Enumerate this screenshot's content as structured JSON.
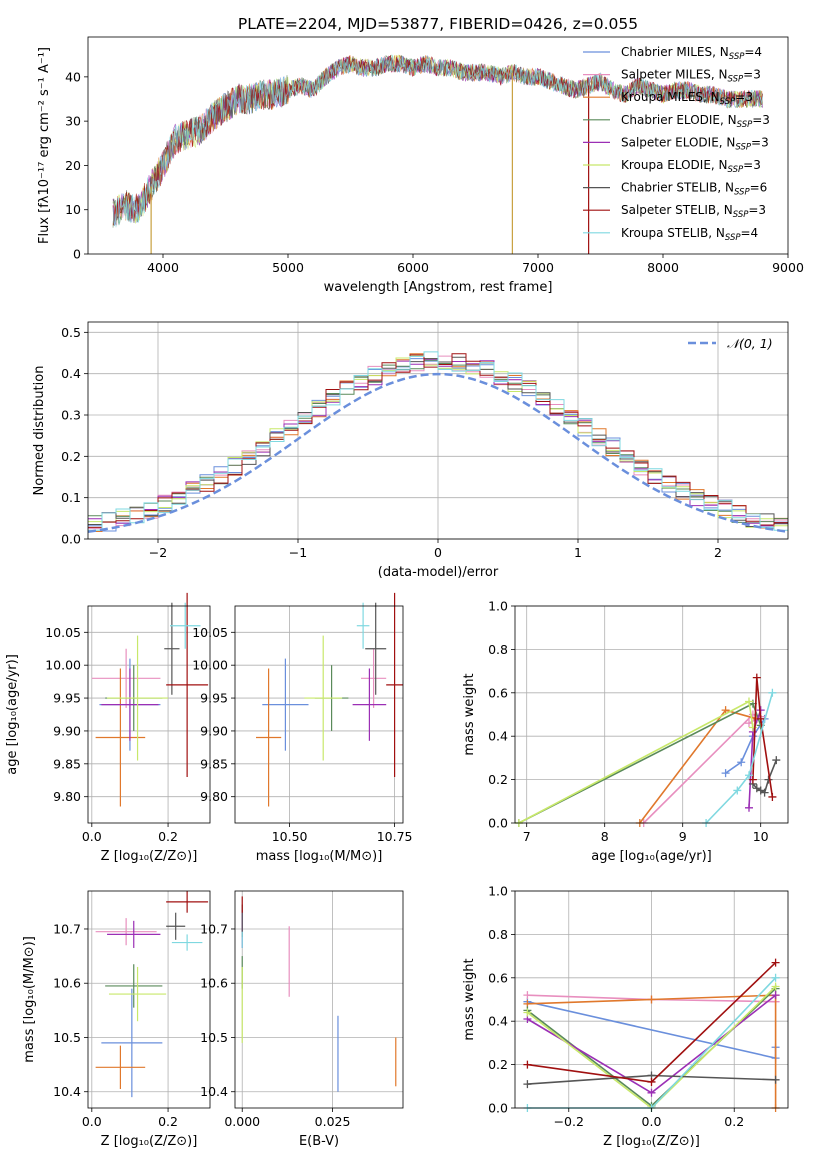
{
  "figure_title": "PLATE=2204, MJD=53877, FIBERID=0426, z=0.055",
  "colors": {
    "chabrier_miles": "#6a8fdc",
    "salpeter_miles": "#e88fbf",
    "kroupa_miles": "#e0782c",
    "chabrier_elodie": "#5a8a5a",
    "salpeter_elodie": "#9b2fb5",
    "kroupa_elodie": "#c8e86a",
    "chabrier_stelib": "#555555",
    "salpeter_stelib": "#a01010",
    "kroupa_stelib": "#7fd8e0",
    "normal": "#6a8fdc",
    "grid": "#b0b0b0"
  },
  "chart_data": [
    {
      "id": "spectrum",
      "type": "line",
      "xlabel": "wavelength [Angstrom, rest frame]",
      "ylabel": "Flux [fλ10⁻¹⁷ erg cm⁻² s⁻¹ A⁻¹]",
      "xlim": [
        3400,
        9000
      ],
      "ylim": [
        0,
        49
      ],
      "xticks": [
        "4000",
        "5000",
        "6000",
        "7000",
        "8000",
        "9000"
      ],
      "yticks": [
        "0",
        "10",
        "20",
        "30",
        "40"
      ],
      "grid": false,
      "legend_position": "right",
      "continuum": [
        [
          3600,
          9
        ],
        [
          3700,
          11
        ],
        [
          3800,
          10
        ],
        [
          3900,
          15
        ],
        [
          4000,
          20
        ],
        [
          4100,
          26
        ],
        [
          4200,
          27
        ],
        [
          4300,
          28
        ],
        [
          4400,
          31
        ],
        [
          4500,
          33
        ],
        [
          4600,
          35
        ],
        [
          4700,
          35
        ],
        [
          4800,
          36
        ],
        [
          4900,
          36
        ],
        [
          5000,
          37
        ],
        [
          5100,
          38
        ],
        [
          5200,
          37
        ],
        [
          5300,
          40
        ],
        [
          5400,
          42
        ],
        [
          5500,
          43
        ],
        [
          5600,
          42
        ],
        [
          5700,
          42
        ],
        [
          5800,
          43
        ],
        [
          5900,
          43
        ],
        [
          6000,
          42
        ],
        [
          6100,
          43
        ],
        [
          6200,
          42
        ],
        [
          6300,
          42
        ],
        [
          6400,
          41
        ],
        [
          6500,
          41
        ],
        [
          6600,
          41
        ],
        [
          6700,
          40
        ],
        [
          6800,
          41
        ],
        [
          6900,
          40
        ],
        [
          7000,
          40
        ],
        [
          7100,
          39
        ],
        [
          7200,
          38
        ],
        [
          7300,
          37
        ],
        [
          7400,
          38
        ],
        [
          7500,
          39
        ],
        [
          7600,
          37
        ],
        [
          7700,
          36
        ],
        [
          7800,
          38
        ],
        [
          7900,
          37
        ],
        [
          8000,
          36
        ],
        [
          8100,
          37
        ],
        [
          8200,
          37
        ],
        [
          8300,
          36
        ],
        [
          8400,
          36
        ],
        [
          8500,
          35
        ],
        [
          8600,
          35
        ],
        [
          8700,
          35
        ],
        [
          8800,
          35
        ]
      ],
      "dips": [
        [
          3905,
          0
        ],
        [
          6795,
          0
        ],
        [
          7405,
          0
        ]
      ],
      "legend": [
        {
          "label": "Chabrier MILES, N",
          "sub": "SSP",
          "suffix": "=4",
          "color": "#6a8fdc"
        },
        {
          "label": "Salpeter MILES, N",
          "sub": "SSP",
          "suffix": "=3",
          "color": "#e88fbf"
        },
        {
          "label": "Kroupa MILES, N",
          "sub": "SSP",
          "suffix": "=3",
          "color": "#e0782c"
        },
        {
          "label": "Chabrier ELODIE, N",
          "sub": "SSP",
          "suffix": "=3",
          "color": "#5a8a5a"
        },
        {
          "label": "Salpeter ELODIE, N",
          "sub": "SSP",
          "suffix": "=3",
          "color": "#9b2fb5"
        },
        {
          "label": "Kroupa ELODIE, N",
          "sub": "SSP",
          "suffix": "=3",
          "color": "#c8e86a"
        },
        {
          "label": "Chabrier STELIB, N",
          "sub": "SSP",
          "suffix": "=6",
          "color": "#555555"
        },
        {
          "label": "Salpeter STELIB, N",
          "sub": "SSP",
          "suffix": "=3",
          "color": "#a01010"
        },
        {
          "label": "Kroupa STELIB, N",
          "sub": "SSP",
          "suffix": "=4",
          "color": "#7fd8e0"
        }
      ]
    },
    {
      "id": "residuals",
      "type": "histogram",
      "xlabel": "(data-model)/error",
      "ylabel": "Normed distribution",
      "xlim": [
        -2.5,
        2.5
      ],
      "ylim": [
        0,
        0.525
      ],
      "xticks": [
        "−2",
        "−1",
        "0",
        "1",
        "2"
      ],
      "yticks": [
        "0.0",
        "0.1",
        "0.2",
        "0.3",
        "0.4",
        "0.5"
      ],
      "grid": true,
      "legend": "𝒩(0, 1)",
      "legend_position": "upper right",
      "bin_edges_range": [
        -2.5,
        2.5
      ],
      "bin_width": 0.1
    },
    {
      "id": "age_vs_Z",
      "type": "errorbar",
      "xlabel": "Z [log₁₀(Z/Z⊙)]",
      "ylabel": "age  [log₁₀(age/yr)]",
      "xlim": [
        -0.01,
        0.31
      ],
      "ylim": [
        9.76,
        10.09
      ],
      "xticks": [
        "0.0",
        "0.2"
      ],
      "yticks": [
        "9.80",
        "9.85",
        "9.90",
        "9.95",
        "10.00",
        "10.05"
      ],
      "grid": true,
      "points": [
        {
          "x": 0.1,
          "y": 9.94,
          "xerr": 0.08,
          "yerr": 0.07,
          "color": "#6a8fdc"
        },
        {
          "x": 0.09,
          "y": 9.98,
          "xerr": 0.09,
          "yerr": 0.045,
          "color": "#e88fbf"
        },
        {
          "x": 0.075,
          "y": 9.89,
          "xerr": 0.065,
          "yerr": 0.105,
          "color": "#e0782c"
        },
        {
          "x": 0.11,
          "y": 9.95,
          "xerr": 0.075,
          "yerr": 0.05,
          "color": "#5a8a5a"
        },
        {
          "x": 0.1,
          "y": 9.94,
          "xerr": 0.075,
          "yerr": 0.055,
          "color": "#9b2fb5"
        },
        {
          "x": 0.12,
          "y": 9.95,
          "xerr": 0.08,
          "yerr": 0.095,
          "color": "#c8e86a"
        },
        {
          "x": 0.21,
          "y": 10.025,
          "xerr": 0.02,
          "yerr": 0.07,
          "color": "#555555"
        },
        {
          "x": 0.25,
          "y": 9.97,
          "xerr": 0.055,
          "yerr": 0.14,
          "color": "#a01010"
        },
        {
          "x": 0.245,
          "y": 10.06,
          "xerr": 0.04,
          "yerr": 0.035,
          "color": "#7fd8e0"
        }
      ]
    },
    {
      "id": "age_vs_mass",
      "type": "errorbar",
      "xlabel": "mass [log₁₀(M/M⊙)]",
      "ylabel": "",
      "xlim": [
        10.37,
        10.77
      ],
      "ylim": [
        9.76,
        10.09
      ],
      "xticks": [
        "10.50",
        "10.75"
      ],
      "yticks": [
        "9.80",
        "9.85",
        "9.90",
        "9.95",
        "10.00",
        "10.05"
      ],
      "grid": true,
      "points": [
        {
          "x": 10.49,
          "y": 9.94,
          "xerr": 0.055,
          "yerr": 0.07,
          "color": "#6a8fdc"
        },
        {
          "x": 10.7,
          "y": 9.98,
          "xerr": 0.03,
          "yerr": 0.045,
          "color": "#e88fbf"
        },
        {
          "x": 10.45,
          "y": 9.89,
          "xerr": 0.03,
          "yerr": 0.105,
          "color": "#e0782c"
        },
        {
          "x": 10.6,
          "y": 9.95,
          "xerr": 0.04,
          "yerr": 0.05,
          "color": "#5a8a5a"
        },
        {
          "x": 10.69,
          "y": 9.94,
          "xerr": 0.04,
          "yerr": 0.055,
          "color": "#9b2fb5"
        },
        {
          "x": 10.58,
          "y": 9.95,
          "xerr": 0.045,
          "yerr": 0.095,
          "color": "#c8e86a"
        },
        {
          "x": 10.705,
          "y": 10.025,
          "xerr": 0.025,
          "yerr": 0.07,
          "color": "#555555"
        },
        {
          "x": 10.75,
          "y": 9.97,
          "xerr": 0.02,
          "yerr": 0.14,
          "color": "#a01010"
        },
        {
          "x": 10.675,
          "y": 10.06,
          "xerr": 0.015,
          "yerr": 0.035,
          "color": "#7fd8e0"
        }
      ]
    },
    {
      "id": "weight_vs_age",
      "type": "line",
      "xlabel": "age  [log₁₀(age/yr)]",
      "ylabel": "mass weight",
      "xlim": [
        6.85,
        10.35
      ],
      "ylim": [
        0,
        1
      ],
      "xticks": [
        "7",
        "8",
        "9",
        "10"
      ],
      "yticks": [
        "0.0",
        "0.2",
        "0.4",
        "0.6",
        "0.8",
        "1.0"
      ],
      "grid": true,
      "series": [
        {
          "color": "#6a8fdc",
          "x": [
            9.55,
            9.75,
            9.9,
            10.05
          ],
          "y": [
            0.23,
            0.28,
            0.4,
            0.48
          ]
        },
        {
          "color": "#e88fbf",
          "x": [
            8.5,
            9.9,
            10.0,
            9.85
          ],
          "y": [
            0.0,
            0.5,
            0.49,
            0.46
          ]
        },
        {
          "color": "#e0782c",
          "x": [
            8.45,
            9.55,
            9.95
          ],
          "y": [
            0.0,
            0.52,
            0.48
          ]
        },
        {
          "color": "#5a8a5a",
          "x": [
            6.9,
            9.9,
            10.0
          ],
          "y": [
            0.0,
            0.55,
            0.45
          ]
        },
        {
          "color": "#9b2fb5",
          "x": [
            9.85,
            9.9,
            10.0
          ],
          "y": [
            0.07,
            0.42,
            0.52
          ]
        },
        {
          "color": "#c8e86a",
          "x": [
            6.9,
            9.85,
            9.9
          ],
          "y": [
            0.0,
            0.56,
            0.44
          ]
        },
        {
          "color": "#555555",
          "x": [
            9.9,
            9.95,
            10.0,
            10.05,
            10.1,
            10.2
          ],
          "y": [
            0.18,
            0.16,
            0.15,
            0.14,
            0.2,
            0.29
          ]
        },
        {
          "color": "#a01010",
          "x": [
            9.9,
            9.95,
            10.0,
            10.15
          ],
          "y": [
            0.2,
            0.67,
            0.48,
            0.12
          ]
        },
        {
          "color": "#7fd8e0",
          "x": [
            9.3,
            9.7,
            9.85,
            10.15
          ],
          "y": [
            0.0,
            0.15,
            0.22,
            0.6
          ]
        }
      ]
    },
    {
      "id": "mass_vs_Z",
      "type": "errorbar",
      "xlabel": "Z [log₁₀(Z/Z⊙)]",
      "ylabel": "mass [log₁₀(M/M⊙)]",
      "xlim": [
        -0.01,
        0.31
      ],
      "ylim": [
        10.37,
        10.77
      ],
      "xticks": [
        "0.0",
        "0.2"
      ],
      "yticks": [
        "10.4",
        "10.5",
        "10.6",
        "10.7"
      ],
      "grid": true,
      "points": [
        {
          "x": 0.105,
          "y": 10.49,
          "xerr": 0.08,
          "yerr": 0.1,
          "color": "#6a8fdc"
        },
        {
          "x": 0.09,
          "y": 10.695,
          "xerr": 0.08,
          "yerr": 0.025,
          "color": "#e88fbf"
        },
        {
          "x": 0.075,
          "y": 10.445,
          "xerr": 0.065,
          "yerr": 0.04,
          "color": "#e0782c"
        },
        {
          "x": 0.11,
          "y": 10.595,
          "xerr": 0.075,
          "yerr": 0.04,
          "color": "#5a8a5a"
        },
        {
          "x": 0.11,
          "y": 10.69,
          "xerr": 0.07,
          "yerr": 0.025,
          "color": "#9b2fb5"
        },
        {
          "x": 0.12,
          "y": 10.58,
          "xerr": 0.075,
          "yerr": 0.05,
          "color": "#c8e86a"
        },
        {
          "x": 0.22,
          "y": 10.705,
          "xerr": 0.025,
          "yerr": 0.025,
          "color": "#555555"
        },
        {
          "x": 0.25,
          "y": 10.75,
          "xerr": 0.055,
          "yerr": 0.02,
          "color": "#a01010"
        },
        {
          "x": 0.25,
          "y": 10.675,
          "xerr": 0.04,
          "yerr": 0.015,
          "color": "#7fd8e0"
        }
      ]
    },
    {
      "id": "mass_vs_ebv",
      "type": "errorbar",
      "xlabel": "E(B-V)",
      "ylabel": "",
      "xlim": [
        -0.002,
        0.0445
      ],
      "ylim": [
        10.37,
        10.77
      ],
      "xticks": [
        "0.000",
        "0.025"
      ],
      "yticks": [
        "10.4",
        "10.5",
        "10.6",
        "10.7"
      ],
      "grid": true,
      "points": [
        {
          "x": 0.0265,
          "y": 10.47,
          "xerr": 0.0,
          "yerr": 0.07,
          "color": "#6a8fdc"
        },
        {
          "x": 0.013,
          "y": 10.64,
          "xerr": 0.0,
          "yerr": 0.065,
          "color": "#e88fbf"
        },
        {
          "x": 0.0425,
          "y": 10.455,
          "xerr": 0.0,
          "yerr": 0.045,
          "color": "#e0782c"
        },
        {
          "x": 0.0,
          "y": 10.62,
          "xerr": 0.0,
          "yerr": 0.03,
          "color": "#5a8a5a"
        },
        {
          "x": 0.0,
          "y": 10.7,
          "xerr": 0.0,
          "yerr": 0.035,
          "color": "#9b2fb5"
        },
        {
          "x": 0.0,
          "y": 10.56,
          "xerr": 0.0,
          "yerr": 0.07,
          "color": "#c8e86a"
        },
        {
          "x": 0.0,
          "y": 10.715,
          "xerr": 0.0,
          "yerr": 0.03,
          "color": "#555555"
        },
        {
          "x": 0.0,
          "y": 10.745,
          "xerr": 0.0,
          "yerr": 0.015,
          "color": "#a01010"
        },
        {
          "x": 0.0,
          "y": 10.68,
          "xerr": 0.0,
          "yerr": 0.015,
          "color": "#7fd8e0"
        }
      ]
    },
    {
      "id": "weight_vs_Z",
      "type": "line",
      "xlabel": "Z [log₁₀(Z/Z⊙)]",
      "ylabel": "mass weight",
      "xlim": [
        -0.33,
        0.33
      ],
      "ylim": [
        0,
        1
      ],
      "xticks": [
        "−0.2",
        "0.0",
        "0.2"
      ],
      "yticks": [
        "0.0",
        "0.2",
        "0.4",
        "0.6",
        "0.8",
        "1.0"
      ],
      "grid": true,
      "series": [
        {
          "color": "#6a8fdc",
          "x": [
            -0.3,
            0.3,
            0.3
          ],
          "y": [
            0.49,
            0.23,
            0.28
          ]
        },
        {
          "color": "#e88fbf",
          "x": [
            -0.3,
            0.0,
            0.3
          ],
          "y": [
            0.52,
            0.5,
            0.49
          ]
        },
        {
          "color": "#e0782c",
          "x": [
            -0.3,
            0.0,
            0.3,
            0.3
          ],
          "y": [
            0.48,
            0.5,
            0.52,
            0.0
          ]
        },
        {
          "color": "#5a8a5a",
          "x": [
            -0.3,
            0.0,
            0.3
          ],
          "y": [
            0.45,
            0.01,
            0.55
          ]
        },
        {
          "color": "#9b2fb5",
          "x": [
            -0.3,
            0.0,
            0.3
          ],
          "y": [
            0.41,
            0.07,
            0.52
          ]
        },
        {
          "color": "#c8e86a",
          "x": [
            -0.3,
            0.0,
            0.3
          ],
          "y": [
            0.44,
            0.0,
            0.56
          ]
        },
        {
          "color": "#555555",
          "x": [
            -0.3,
            0.0,
            0.3
          ],
          "y": [
            0.11,
            0.15,
            0.13
          ]
        },
        {
          "color": "#a01010",
          "x": [
            -0.3,
            0.0,
            0.3
          ],
          "y": [
            0.2,
            0.12,
            0.67
          ]
        },
        {
          "color": "#7fd8e0",
          "x": [
            -0.3,
            0.0,
            0.3
          ],
          "y": [
            0.0,
            0.0,
            0.6
          ]
        }
      ]
    }
  ]
}
